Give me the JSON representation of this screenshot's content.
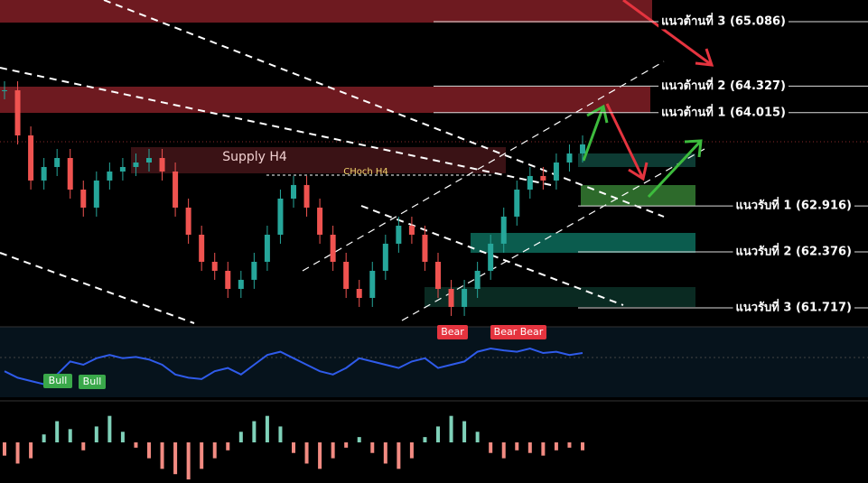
{
  "chart_data": {
    "type": "candlestick",
    "values": [
      64.278,
      63.747,
      63.216,
      63.375,
      63.481,
      63.109,
      62.897,
      63.216,
      63.322,
      63.375,
      63.428,
      63.481,
      63.322,
      62.897,
      62.578,
      62.259,
      62.153,
      61.94,
      62.047,
      62.259,
      62.578,
      63.003,
      63.163,
      62.897,
      62.578,
      62.259,
      61.94,
      61.834,
      62.153,
      62.472,
      62.684,
      62.578,
      62.259,
      61.94,
      61.728,
      61.94,
      62.153,
      62.472,
      62.791,
      63.109,
      63.269,
      63.216,
      63.428,
      63.534,
      63.641
    ],
    "ylim": [
      61.515,
      65.341
    ],
    "levels": [
      {
        "label": "แนวต้านที่ 3 (65.086)",
        "value": 65.086,
        "kind": "resistance"
      },
      {
        "label": "แนวต้านที่ 2 (64.327)",
        "value": 64.327,
        "kind": "resistance"
      },
      {
        "label": "แนวต้านที่ 1 (64.015)",
        "value": 64.015,
        "kind": "resistance"
      },
      {
        "label": "แนวรับที่ 1 (62.916)",
        "value": 62.916,
        "kind": "support"
      },
      {
        "label": "แนวรับที่ 2 (62.376)",
        "value": 62.376,
        "kind": "support"
      },
      {
        "label": "แนวรับที่ 3 (61.717)",
        "value": 61.717,
        "kind": "support"
      }
    ],
    "annotations": [
      "Supply H4",
      "CHoch H4"
    ],
    "signals": [
      "Bull",
      "Bull",
      "Bear",
      "Bear Bear"
    ],
    "oscillator": {
      "color": "#2f5bea",
      "ylim": [
        0,
        100
      ],
      "values": [
        40,
        30,
        25,
        20,
        35,
        55,
        50,
        60,
        65,
        60,
        62,
        58,
        50,
        35,
        30,
        28,
        40,
        45,
        35,
        50,
        65,
        70,
        60,
        50,
        40,
        35,
        45,
        60,
        55,
        50,
        45,
        55,
        60,
        45,
        50,
        55,
        70,
        75,
        72,
        70,
        75,
        68,
        70,
        65,
        68
      ]
    },
    "histogram": {
      "up_color": "#7fd1b9",
      "down_color": "#f28b82",
      "ylim": [
        -15,
        15
      ],
      "values": [
        -5,
        -8,
        -6,
        3,
        8,
        5,
        -3,
        6,
        10,
        4,
        -2,
        -6,
        -10,
        -12,
        -14,
        -10,
        -6,
        -3,
        4,
        8,
        10,
        6,
        -4,
        -8,
        -10,
        -6,
        -2,
        2,
        -4,
        -8,
        -10,
        -6,
        2,
        6,
        10,
        8,
        4,
        -4,
        -6,
        -3,
        -4,
        -5,
        -3,
        -2,
        -3
      ]
    }
  }
}
